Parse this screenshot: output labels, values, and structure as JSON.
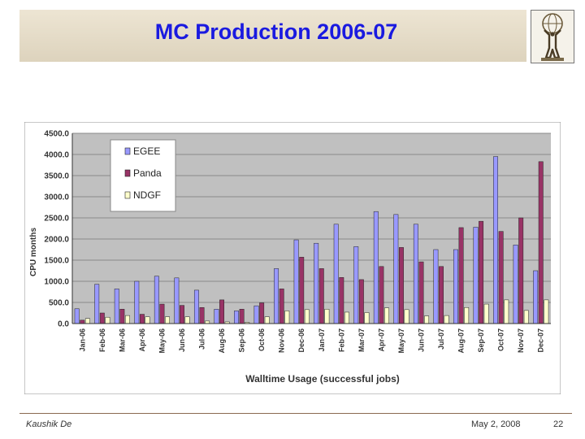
{
  "slide": {
    "title": "MC Production 2006-07",
    "author": "Kaushik De",
    "date": "May 2, 2008",
    "page": "22"
  },
  "colors": {
    "banner": "#e6dcc8",
    "title": "#1a1ae0",
    "plot_bg": "#c0c0c0",
    "EGEE": "#9999ff",
    "Panda": "#993366",
    "NDGF": "#ffffcc"
  },
  "logo": {
    "icon": "atlas-figure-icon"
  },
  "chart_data": {
    "type": "bar",
    "xlabel": "Walltime Usage (successful jobs)",
    "ylabel": "CPU months",
    "ylim": [
      0,
      4500
    ],
    "yticks": [
      "4500.0",
      "4000.0",
      "3500.0",
      "3000.0",
      "2500.0",
      "2000.0",
      "1500.0",
      "1000.0",
      "500.0",
      "0.0"
    ],
    "grid": true,
    "legend": "top-left",
    "categories": [
      "Jan-06",
      "Feb-06",
      "Mar-06",
      "Apr-06",
      "May-06",
      "Jun-06",
      "Jul-06",
      "Aug-06",
      "Sep-06",
      "Oct-06",
      "Nov-06",
      "Dec-06",
      "Jan-07",
      "Feb-07",
      "Mar-07",
      "Apr-07",
      "May-07",
      "Jun-07",
      "Jul-07",
      "Aug-07",
      "Sep-07",
      "Oct-07",
      "Nov-07",
      "Dec-07"
    ],
    "series": [
      {
        "name": "EGEE",
        "values": [
          350,
          930,
          820,
          1000,
          1120,
          1080,
          790,
          340,
          300,
          420,
          1300,
          1980,
          1900,
          2350,
          1820,
          2650,
          2580,
          2350,
          1750,
          1750,
          2280,
          3950,
          1860,
          1250
        ]
      },
      {
        "name": "Panda",
        "values": [
          80,
          250,
          340,
          220,
          460,
          430,
          380,
          560,
          340,
          490,
          820,
          1570,
          1300,
          1090,
          1040,
          1350,
          1800,
          1460,
          1350,
          2270,
          2420,
          2180,
          2500,
          3830
        ]
      },
      {
        "name": "NDGF",
        "values": [
          120,
          150,
          190,
          160,
          160,
          160,
          60,
          40,
          30,
          160,
          300,
          330,
          340,
          270,
          260,
          370,
          330,
          180,
          190,
          380,
          460,
          560,
          310,
          560
        ]
      }
    ]
  }
}
